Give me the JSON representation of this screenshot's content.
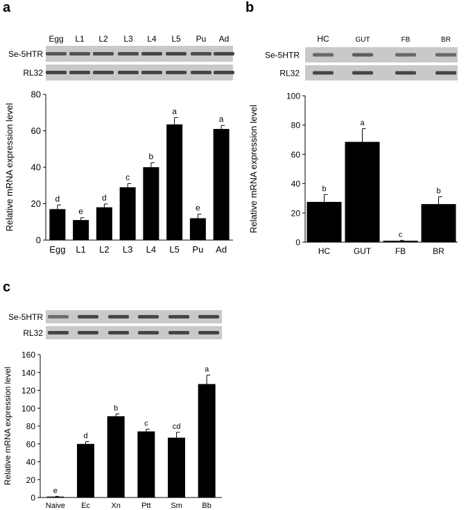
{
  "panels": {
    "a": {
      "label": "a"
    },
    "b": {
      "label": "b"
    },
    "c": {
      "label": "c"
    }
  },
  "chart_data": [
    {
      "panel": "a",
      "type": "bar",
      "gel": {
        "lane_labels": [
          "Egg",
          "L1",
          "L2",
          "L3",
          "L4",
          "L5",
          "Pu",
          "Ad"
        ],
        "rows": [
          "Se-5HTR",
          "RL32"
        ]
      },
      "categories": [
        "Egg",
        "L1",
        "L2",
        "L3",
        "L4",
        "L5",
        "Pu",
        "Ad"
      ],
      "values": [
        17,
        11,
        18,
        29,
        40,
        63.5,
        12,
        61
      ],
      "errors": [
        2.3,
        1.3,
        1.8,
        2.0,
        2.5,
        3.8,
        2.2,
        2.0
      ],
      "significance_letters": [
        "d",
        "e",
        "d",
        "c",
        "b",
        "a",
        "e",
        "a"
      ],
      "ylabel": "Relative mRNA expression level",
      "ylim": [
        0,
        80
      ],
      "yticks": [
        0,
        20,
        40,
        60,
        80
      ],
      "grid": false,
      "bar_color": "#000000"
    },
    {
      "panel": "b",
      "type": "bar",
      "gel": {
        "lane_labels": [
          "HC",
          "GUT",
          "FB",
          "BR"
        ],
        "rows": [
          "Se-5HTR",
          "RL32"
        ]
      },
      "categories": [
        "HC",
        "GUT",
        "FB",
        "BR"
      ],
      "values": [
        27.5,
        68.5,
        1,
        26
      ],
      "errors": [
        5,
        9,
        0.3,
        5
      ],
      "significance_letters": [
        "b",
        "a",
        "c",
        "b"
      ],
      "ylabel": "Relative mRNA expression level",
      "ylim": [
        0,
        100
      ],
      "yticks": [
        0,
        20,
        40,
        60,
        80,
        100
      ],
      "grid": false,
      "bar_color": "#000000"
    },
    {
      "panel": "c",
      "type": "bar",
      "gel": {
        "lane_labels": [],
        "rows": [
          "Se-5HTR",
          "RL32"
        ]
      },
      "categories": [
        "Naive",
        "Ec",
        "Xn",
        "Ptt",
        "Sm",
        "Bb"
      ],
      "values": [
        1,
        60,
        91,
        74,
        67,
        127
      ],
      "errors": [
        0.3,
        2.5,
        2.5,
        2.5,
        6,
        10
      ],
      "significance_letters": [
        "e",
        "d",
        "b",
        "c",
        "cd",
        "a"
      ],
      "ylabel": "Relative mRNA expression level",
      "ylim": [
        0,
        160
      ],
      "yticks": [
        0,
        20,
        40,
        60,
        80,
        100,
        120,
        140,
        160
      ],
      "grid": false,
      "bar_color": "#000000"
    }
  ]
}
